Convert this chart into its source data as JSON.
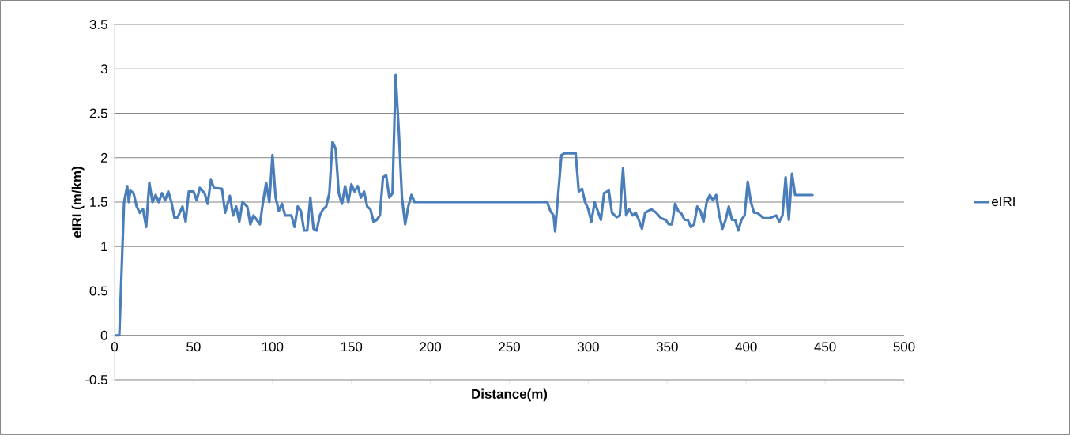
{
  "chart_data": {
    "type": "line",
    "xlabel": "Distance(m)",
    "ylabel": "eIRI (m/km)",
    "xlim": [
      0,
      500
    ],
    "ylim": [
      -0.5,
      3.5
    ],
    "xticks": [
      0,
      50,
      100,
      150,
      200,
      250,
      300,
      350,
      400,
      450,
      500
    ],
    "yticks": [
      -0.5,
      0,
      0.5,
      1,
      1.5,
      2,
      2.5,
      3,
      3.5
    ],
    "grid": "y",
    "legend": "right",
    "marker": "none",
    "line_style": "solid",
    "series": [
      {
        "name": "eIRI",
        "color": "#4a7ebb",
        "x": [
          0,
          3,
          4,
          6,
          8,
          9,
          10,
          12,
          14,
          16,
          18,
          20,
          22,
          24,
          26,
          28,
          30,
          32,
          34,
          36,
          38,
          40,
          43,
          45,
          47,
          50,
          52,
          54,
          57,
          59,
          61,
          63,
          68,
          70,
          73,
          75,
          77,
          79,
          81,
          84,
          86,
          88,
          90,
          92,
          94,
          96,
          98,
          100,
          102,
          104,
          106,
          108,
          112,
          114,
          116,
          118,
          120,
          122,
          124,
          126,
          128,
          130,
          132,
          134,
          136,
          138,
          140,
          142,
          144,
          146,
          148,
          150,
          152,
          154,
          156,
          158,
          160,
          162,
          164,
          166,
          168,
          170,
          172,
          174,
          176,
          178,
          180,
          182,
          184,
          186,
          188,
          190,
          274,
          276,
          278,
          279,
          281,
          283,
          285,
          292,
          294,
          296,
          298,
          300,
          302,
          304,
          306,
          308,
          310,
          313,
          315,
          318,
          320,
          322,
          324,
          326,
          328,
          330,
          332,
          334,
          336,
          338,
          340,
          343,
          346,
          349,
          351,
          353,
          355,
          357,
          359,
          361,
          363,
          365,
          367,
          369,
          371,
          373,
          375,
          377,
          379,
          381,
          383,
          385,
          387,
          389,
          391,
          393,
          395,
          397,
          399,
          401,
          403,
          405,
          407,
          411,
          415,
          419,
          421,
          423,
          425,
          427,
          429,
          431,
          442
        ],
        "values": [
          0,
          0,
          0.5,
          1.5,
          1.68,
          1.5,
          1.63,
          1.6,
          1.45,
          1.38,
          1.42,
          1.22,
          1.72,
          1.5,
          1.58,
          1.5,
          1.6,
          1.52,
          1.62,
          1.5,
          1.32,
          1.33,
          1.45,
          1.28,
          1.62,
          1.62,
          1.52,
          1.66,
          1.6,
          1.48,
          1.75,
          1.66,
          1.65,
          1.38,
          1.57,
          1.35,
          1.45,
          1.28,
          1.5,
          1.45,
          1.25,
          1.35,
          1.3,
          1.25,
          1.5,
          1.72,
          1.5,
          2.03,
          1.55,
          1.4,
          1.48,
          1.35,
          1.35,
          1.22,
          1.45,
          1.4,
          1.18,
          1.18,
          1.55,
          1.2,
          1.18,
          1.35,
          1.42,
          1.45,
          1.6,
          2.18,
          2.1,
          1.6,
          1.48,
          1.68,
          1.5,
          1.7,
          1.62,
          1.68,
          1.55,
          1.62,
          1.45,
          1.42,
          1.28,
          1.3,
          1.35,
          1.78,
          1.8,
          1.55,
          1.6,
          2.93,
          2.3,
          1.55,
          1.25,
          1.45,
          1.58,
          1.5,
          1.5,
          1.4,
          1.35,
          1.17,
          1.6,
          2.03,
          2.05,
          2.05,
          1.62,
          1.65,
          1.5,
          1.42,
          1.28,
          1.5,
          1.4,
          1.3,
          1.6,
          1.63,
          1.38,
          1.33,
          1.35,
          1.88,
          1.35,
          1.42,
          1.35,
          1.38,
          1.3,
          1.2,
          1.38,
          1.4,
          1.42,
          1.38,
          1.32,
          1.3,
          1.25,
          1.25,
          1.48,
          1.4,
          1.37,
          1.3,
          1.3,
          1.22,
          1.25,
          1.45,
          1.4,
          1.28,
          1.5,
          1.58,
          1.52,
          1.58,
          1.35,
          1.2,
          1.3,
          1.45,
          1.3,
          1.3,
          1.18,
          1.3,
          1.35,
          1.73,
          1.5,
          1.38,
          1.38,
          1.32,
          1.32,
          1.35,
          1.28,
          1.35,
          1.78,
          1.3,
          1.82,
          1.58,
          1.58
        ]
      }
    ]
  }
}
